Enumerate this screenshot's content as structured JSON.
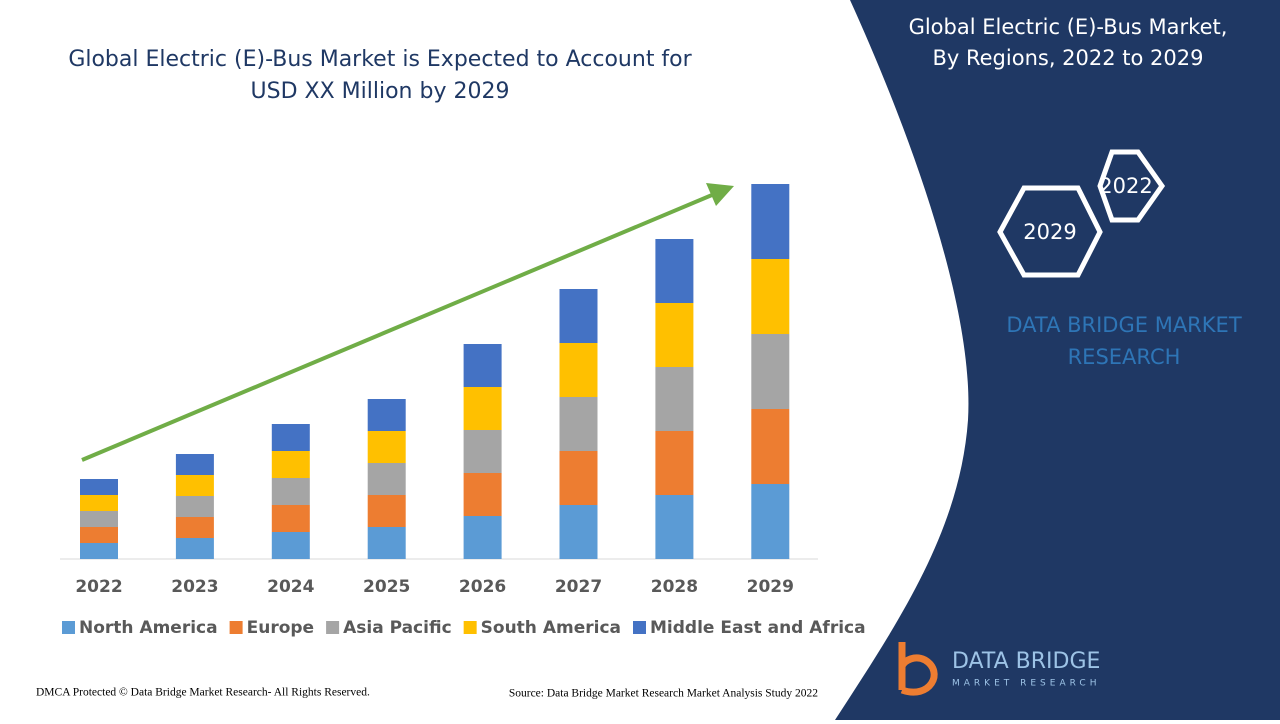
{
  "chart_data": {
    "type": "stacked_bar",
    "title": [
      "Global Electric (E)-Bus Market is Expected to Account for",
      "USD XX Million by 2029"
    ],
    "categories": [
      "2022",
      "2023",
      "2024",
      "2025",
      "2026",
      "2027",
      "2028",
      "2029"
    ],
    "series": [
      {
        "name": "North America",
        "color": "#5b9bd5",
        "values": [
          1.6,
          2.1,
          2.7,
          3.2,
          4.3,
          5.4,
          6.4,
          7.5
        ]
      },
      {
        "name": "Europe",
        "color": "#ed7d31",
        "values": [
          1.6,
          2.1,
          2.7,
          3.2,
          4.3,
          5.4,
          6.4,
          7.5
        ]
      },
      {
        "name": "Asia Pacific",
        "color": "#a5a5a5",
        "values": [
          1.6,
          2.1,
          2.7,
          3.2,
          4.3,
          5.4,
          6.4,
          7.5
        ]
      },
      {
        "name": "South America",
        "color": "#ffc000",
        "values": [
          1.6,
          2.1,
          2.7,
          3.2,
          4.3,
          5.4,
          6.4,
          7.5
        ]
      },
      {
        "name": "Middle East and Africa",
        "color": "#4472c4",
        "values": [
          1.6,
          2.1,
          2.7,
          3.2,
          4.3,
          5.4,
          6.4,
          7.5
        ]
      }
    ],
    "trend_arrow_color": "#70ad47"
  },
  "panel": {
    "title": [
      "Global Electric (E)-Bus Market,",
      "By Regions, 2022 to 2029"
    ],
    "hexagons": [
      "2022",
      "2029"
    ],
    "brand": [
      "DATA BRIDGE MARKET",
      "RESEARCH"
    ]
  },
  "footer": {
    "left": "DMCA Protected © Data Bridge Market Research- All Rights Reserved.",
    "right": "Source: Data Bridge Market Research Market Analysis Study 2022"
  },
  "logo": {
    "name": "DATA BRIDGE",
    "tagline": "MARKET RESEARCH"
  }
}
